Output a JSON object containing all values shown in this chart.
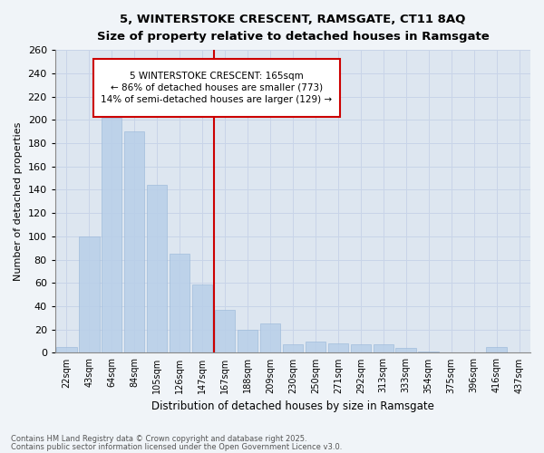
{
  "title_line1": "5, WINTERSTOKE CRESCENT, RAMSGATE, CT11 8AQ",
  "subtitle": "Size of property relative to detached houses in Ramsgate",
  "xlabel": "Distribution of detached houses by size in Ramsgate",
  "ylabel": "Number of detached properties",
  "categories": [
    "22sqm",
    "43sqm",
    "64sqm",
    "84sqm",
    "105sqm",
    "126sqm",
    "147sqm",
    "167sqm",
    "188sqm",
    "209sqm",
    "230sqm",
    "250sqm",
    "271sqm",
    "292sqm",
    "313sqm",
    "333sqm",
    "354sqm",
    "375sqm",
    "396sqm",
    "416sqm",
    "437sqm"
  ],
  "values": [
    5,
    100,
    202,
    190,
    144,
    85,
    59,
    37,
    20,
    25,
    7,
    10,
    8,
    7,
    7,
    4,
    1,
    0,
    0,
    5,
    0
  ],
  "bar_color": "#b8cfe8",
  "bar_edge_color": "#9ab8d8",
  "property_line_x": 7,
  "property_line_label": "5 WINTERSTOKE CRESCENT: 165sqm",
  "annotation_line2": "← 86% of detached houses are smaller (773)",
  "annotation_line3": "14% of semi-detached houses are larger (129) →",
  "ylim": [
    0,
    260
  ],
  "yticks": [
    0,
    20,
    40,
    60,
    80,
    100,
    120,
    140,
    160,
    180,
    200,
    220,
    240,
    260
  ],
  "grid_color": "#c8d4e8",
  "bg_color": "#dde6f0",
  "fig_color": "#f0f4f8",
  "bar_alpha": 0.85,
  "footer_line1": "Contains HM Land Registry data © Crown copyright and database right 2025.",
  "footer_line2": "Contains public sector information licensed under the Open Government Licence v3.0.",
  "annotation_box_color": "#cc0000",
  "annotation_text_color": "#000000"
}
